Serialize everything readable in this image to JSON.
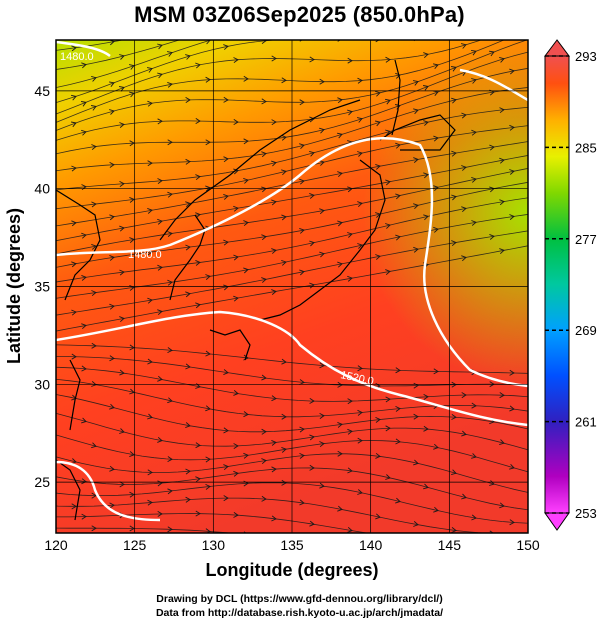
{
  "title": "MSM 03Z06Sep2025 (850.0hPa)",
  "axes": {
    "xlabel": "Longitude (degrees)",
    "ylabel": "Latitude  (degrees)",
    "xticks": [
      "120",
      "125",
      "130",
      "135",
      "140",
      "145",
      "150"
    ],
    "yticks": [
      "45",
      "40",
      "35",
      "30",
      "25"
    ],
    "xrange": [
      120,
      150
    ],
    "yrange": [
      22.4,
      47.6
    ],
    "grid": true
  },
  "colorbar": {
    "labels": [
      "293",
      "285",
      "277",
      "269",
      "261",
      "253"
    ],
    "range": [
      253,
      293
    ],
    "colors": [
      "#ff40ff",
      "#c000c0",
      "#8000a0",
      "#2020e0",
      "#0080ff",
      "#00c0ff",
      "#00d0a0",
      "#00c050",
      "#40d000",
      "#a0e000",
      "#e0f000",
      "#ffd000",
      "#ffa000",
      "#ff7000",
      "#ff4000",
      "#f05050"
    ]
  },
  "contours": {
    "color": "#ffffff",
    "labels": [
      "1480.0",
      "1480.0",
      "1520.0"
    ]
  },
  "credits": {
    "line1": "Drawing by DCL (https://www.gfd-dennou.org/library/dcl/)",
    "line2": "Data from http://database.rish.kyoto-u.ac.jp/arch/jmadata/"
  }
}
